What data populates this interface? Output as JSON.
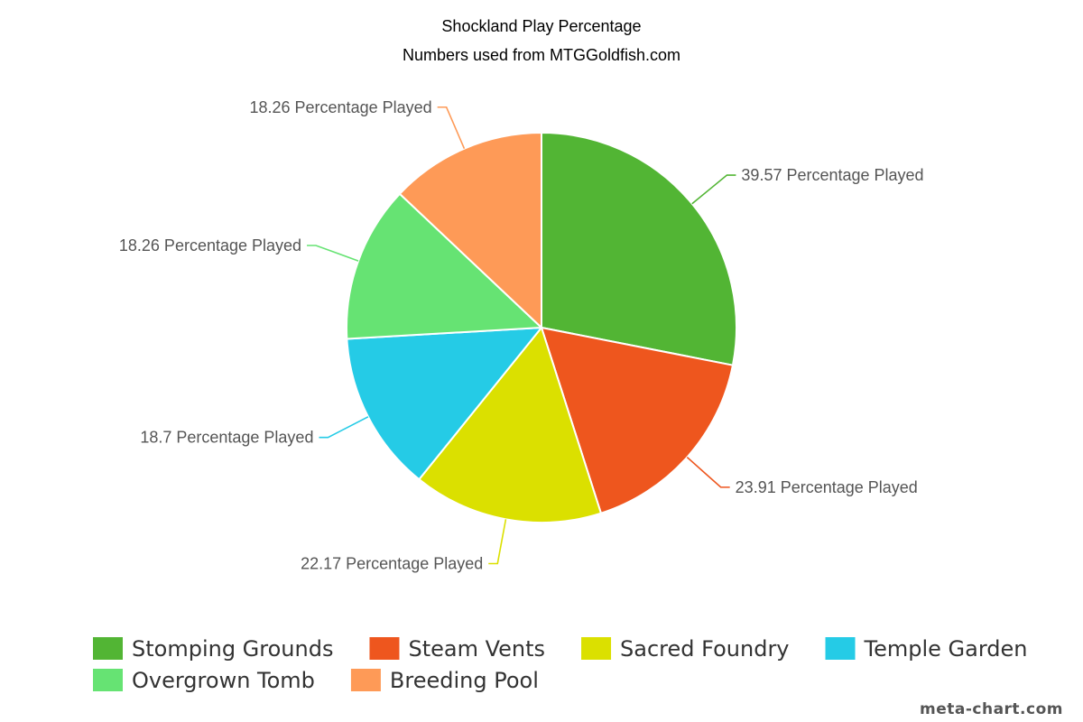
{
  "chart_data": {
    "type": "pie",
    "title": "Shockland Play Percentage",
    "subtitle": "Numbers used from MTGGoldfish.com",
    "slices": [
      {
        "name": "Stomping Grounds",
        "value": 39.57,
        "label": "39.57 Percentage Played",
        "color": "#52b534"
      },
      {
        "name": "Steam Vents",
        "value": 23.91,
        "label": "23.91 Percentage Played",
        "color": "#ee561e"
      },
      {
        "name": "Sacred Foundry",
        "value": 22.17,
        "label": "22.17 Percentage Played",
        "color": "#dbe000"
      },
      {
        "name": "Temple Garden",
        "value": 18.7,
        "label": "18.7 Percentage Played",
        "color": "#25cbe6"
      },
      {
        "name": "Overgrown Tomb",
        "value": 18.26,
        "label": "18.26 Percentage Played",
        "color": "#66e373"
      },
      {
        "name": "Breeding Pool",
        "value": 18.26,
        "label": "18.26 Percentage Played",
        "color": "#fe9a57"
      }
    ],
    "legend_position": "bottom"
  },
  "watermark": "meta-chart.com"
}
